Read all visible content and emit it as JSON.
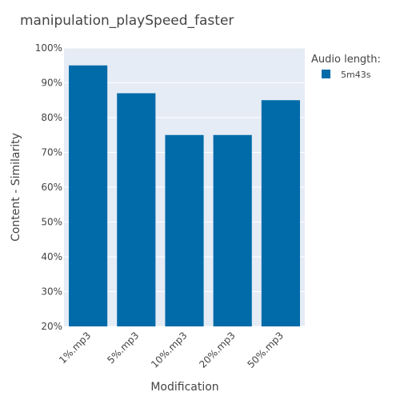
{
  "chart_data": {
    "type": "bar",
    "title": "manipulation_playSpeed_faster",
    "xlabel": "Modification",
    "ylabel": "Content - Similarity",
    "categories": [
      "1%.mp3",
      "5%.mp3",
      "10%.mp3",
      "20%.mp3",
      "50%.mp3"
    ],
    "series": [
      {
        "name": "5m43s",
        "values": [
          95,
          87,
          75,
          75,
          85
        ],
        "color": "#006BA8"
      }
    ],
    "ylim": [
      20,
      100
    ],
    "yticks": [
      20,
      30,
      40,
      50,
      60,
      70,
      80,
      90,
      100
    ],
    "ytick_labels": [
      "20%",
      "30%",
      "40%",
      "50%",
      "60%",
      "70%",
      "80%",
      "90%",
      "100%"
    ],
    "grid": true,
    "plot_background": "#E5ECF6",
    "legend": {
      "title": "Audio length:",
      "placement": "top-right"
    }
  }
}
